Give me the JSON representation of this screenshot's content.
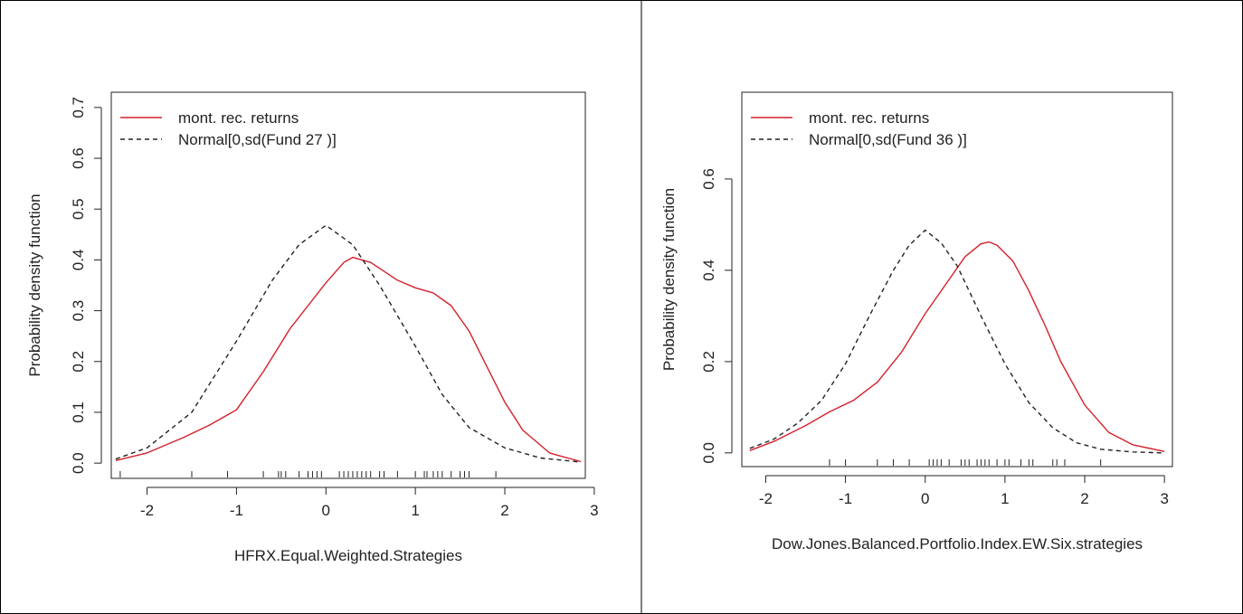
{
  "chart_data": [
    {
      "type": "line",
      "title": "",
      "xlabel": "HFRX.Equal.Weighted.Strategies",
      "ylabel": "Probability density function",
      "xlim": [
        -2.4,
        2.9
      ],
      "ylim": [
        -0.03,
        0.73
      ],
      "xticks": [
        -2,
        -1,
        0,
        1,
        2,
        3
      ],
      "yticks": [
        0.0,
        0.1,
        0.2,
        0.3,
        0.4,
        0.5,
        0.6,
        0.7
      ],
      "xtick_labels": [
        "-2",
        "-1",
        "0",
        "1",
        "2",
        "3"
      ],
      "ytick_labels": [
        "0.0",
        "0.1",
        "0.2",
        "0.3",
        "0.4",
        "0.5",
        "0.6",
        "0.7"
      ],
      "legend_position": "top-left",
      "series": [
        {
          "name": "mont. rec. returns",
          "color": "#d4202a",
          "dash": "solid",
          "x": [
            -2.35,
            -2.0,
            -1.6,
            -1.3,
            -1.0,
            -0.7,
            -0.4,
            -0.2,
            0.0,
            0.2,
            0.3,
            0.5,
            0.8,
            1.0,
            1.2,
            1.4,
            1.6,
            1.8,
            2.0,
            2.2,
            2.5,
            2.85
          ],
          "y": [
            0.005,
            0.02,
            0.05,
            0.075,
            0.105,
            0.18,
            0.265,
            0.31,
            0.355,
            0.395,
            0.405,
            0.395,
            0.36,
            0.345,
            0.335,
            0.31,
            0.26,
            0.19,
            0.12,
            0.065,
            0.02,
            0.003
          ]
        },
        {
          "name": "Normal[0,sd(Fund 27 )]",
          "color": "#222222",
          "dash": "dashed",
          "x": [
            -2.35,
            -2.0,
            -1.5,
            -1.0,
            -0.6,
            -0.3,
            0.0,
            0.3,
            0.6,
            1.0,
            1.3,
            1.6,
            2.0,
            2.4,
            2.85
          ],
          "y": [
            0.008,
            0.03,
            0.1,
            0.24,
            0.36,
            0.43,
            0.468,
            0.43,
            0.35,
            0.23,
            0.135,
            0.07,
            0.03,
            0.01,
            0.002
          ]
        }
      ],
      "rug": [
        -2.3,
        -1.5,
        -1.1,
        -0.7,
        -0.53,
        -0.5,
        -0.45,
        -0.3,
        -0.2,
        -0.15,
        -0.1,
        -0.05,
        0.15,
        0.2,
        0.25,
        0.3,
        0.35,
        0.4,
        0.45,
        0.5,
        0.6,
        0.65,
        0.8,
        1.0,
        1.1,
        1.13,
        1.2,
        1.25,
        1.3,
        1.4,
        1.5,
        1.55,
        1.6,
        1.9
      ]
    },
    {
      "type": "line",
      "title": "",
      "xlabel": "Dow.Jones.Balanced.Portfolio.Index.EW.Six.strategies",
      "ylabel": "Probability density function",
      "xlim": [
        -2.3,
        3.1
      ],
      "ylim": [
        -0.03,
        0.79
      ],
      "xticks": [
        -2,
        -1,
        0,
        1,
        2,
        3
      ],
      "yticks": [
        0.0,
        0.2,
        0.4,
        0.6
      ],
      "xtick_labels": [
        "-2",
        "-1",
        "0",
        "1",
        "2",
        "3"
      ],
      "ytick_labels": [
        "0.0",
        "0.2",
        "0.4",
        "0.6"
      ],
      "legend_position": "top-left",
      "series": [
        {
          "name": "mont. rec. returns",
          "color": "#d4202a",
          "dash": "solid",
          "x": [
            -2.2,
            -1.9,
            -1.5,
            -1.2,
            -0.9,
            -0.6,
            -0.3,
            0.0,
            0.3,
            0.5,
            0.7,
            0.8,
            0.9,
            1.1,
            1.3,
            1.5,
            1.7,
            2.0,
            2.3,
            2.6,
            3.0
          ],
          "y": [
            0.005,
            0.025,
            0.06,
            0.09,
            0.115,
            0.155,
            0.22,
            0.305,
            0.38,
            0.43,
            0.458,
            0.462,
            0.455,
            0.42,
            0.355,
            0.28,
            0.2,
            0.105,
            0.045,
            0.018,
            0.003
          ]
        },
        {
          "name": "Normal[0,sd(Fund 36 )]",
          "color": "#222222",
          "dash": "dashed",
          "x": [
            -2.2,
            -1.9,
            -1.6,
            -1.3,
            -1.0,
            -0.7,
            -0.4,
            -0.2,
            0.0,
            0.2,
            0.4,
            0.7,
            1.0,
            1.3,
            1.6,
            1.9,
            2.2,
            2.6,
            3.0
          ],
          "y": [
            0.01,
            0.03,
            0.065,
            0.115,
            0.195,
            0.3,
            0.4,
            0.455,
            0.488,
            0.46,
            0.41,
            0.3,
            0.195,
            0.11,
            0.055,
            0.022,
            0.008,
            0.002,
            0.0
          ]
        }
      ],
      "rug": [
        -1.2,
        -1.0,
        -0.6,
        -0.4,
        -0.2,
        0.05,
        0.1,
        0.15,
        0.2,
        0.3,
        0.45,
        0.5,
        0.55,
        0.65,
        0.7,
        0.75,
        0.8,
        0.9,
        1.0,
        1.05,
        1.2,
        1.3,
        1.35,
        1.6,
        1.65,
        1.75,
        2.2
      ]
    }
  ]
}
